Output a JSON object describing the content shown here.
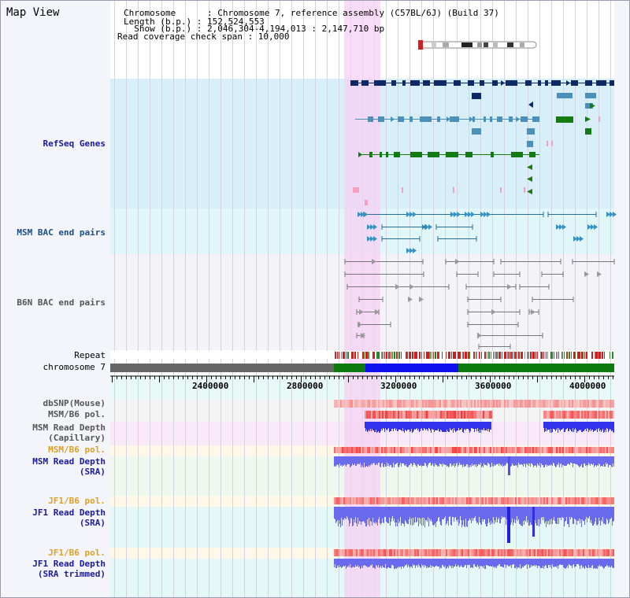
{
  "title": "Map View",
  "info": {
    "line1": "Chromosome      : Chromosome 7, reference assembly (C57BL/6J) (Build 37)",
    "line2": "Length (b.p.) : 152,524,553",
    "line3": "  Show (b.p.) : 2,046,304-4,194,013 : 2,147,710 bp",
    "line4": "Read coverage check span : 10,000"
  },
  "tracks": {
    "refseq": "RefSeq Genes",
    "msm_bac": "MSM BAC end pairs",
    "b6n_bac": "B6N BAC end pairs",
    "repeat": "Repeat",
    "chromosome": "chromosome 7",
    "dbsnp": "dbSNP(Mouse)",
    "msm_pol": "MSM/B6 pol.",
    "msm_cap_1": "MSM Read Depth",
    "msm_cap_2": "(Capillary)",
    "msm_pol2": "MSM/B6 pol.",
    "msm_sra_1": "MSM Read Depth",
    "msm_sra_2": "(SRA)",
    "jf1_pol": "JF1/B6 pol.",
    "jf1_sra_1": "JF1 Read Depth",
    "jf1_sra_2": "(SRA)",
    "jf1_pol2": "JF1/B6 pol.",
    "jf1_trim_1": "JF1 Read Depth",
    "jf1_trim_2": "(SRA trimmed)"
  },
  "ruler": {
    "ticks": [
      "2400000",
      "2800000",
      "3200000",
      "3600000",
      "4000000"
    ]
  },
  "colors": {
    "refseq_bg": "#d8eef8",
    "msm_bac_bg": "#e0f6f8",
    "b6n_bg": "#f4f4f8",
    "highlight": "#f7d0f4",
    "gene_navy": "#0d2a66",
    "gene_steel": "#4a90b8",
    "gene_green": "#147a14",
    "chrom_gray": "#666666",
    "chrom_green": "#0c7a0c",
    "chrom_blue": "#1010ee",
    "depth_blue": "#6a6aee"
  }
}
